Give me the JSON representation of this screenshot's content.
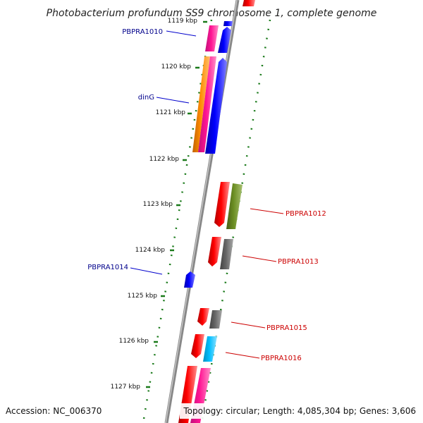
{
  "title": "Photobacterium profundum SS9 chromosome 1, complete genome",
  "footer": {
    "accession": "Accession: NC_006370",
    "topology": "Topology: circular; Length: 4,085,304 bp; Genes: 3,606"
  },
  "ticks": [
    {
      "kb": 1119,
      "label": "1119 kbp"
    },
    {
      "kb": 1120,
      "label": "1120 kbp"
    },
    {
      "kb": 1121,
      "label": "1121 kbp"
    },
    {
      "kb": 1122,
      "label": "1122 kbp"
    },
    {
      "kb": 1123,
      "label": "1123 kbp"
    },
    {
      "kb": 1124,
      "label": "1124 kbp"
    },
    {
      "kb": 1125,
      "label": "1125 kbp"
    },
    {
      "kb": 1126,
      "label": "1126 kbp"
    },
    {
      "kb": 1127,
      "label": "1127 kbp"
    }
  ],
  "labels": [
    {
      "text": "PBPRA1010",
      "color": "#00008b"
    },
    {
      "text": "dinG",
      "color": "#00008b"
    },
    {
      "text": "PBPRA1014",
      "color": "#00008b"
    },
    {
      "text": "PBPRA1012",
      "color": "#cc0000"
    },
    {
      "text": "PBPRA1013",
      "color": "#cc0000"
    },
    {
      "text": "PBPRA1015",
      "color": "#cc0000"
    },
    {
      "text": "PBPRA1016",
      "color": "#cc0000"
    }
  ],
  "colors": {
    "blue": "#0000ff",
    "red": "#ff0000",
    "pink": "#ff1493",
    "orange": "#ff8c00",
    "olive": "#6b8e23",
    "gray": "#666666",
    "cyan": "#00bfff",
    "dot_green": "#1a7a1a",
    "backbone": "#888888"
  }
}
